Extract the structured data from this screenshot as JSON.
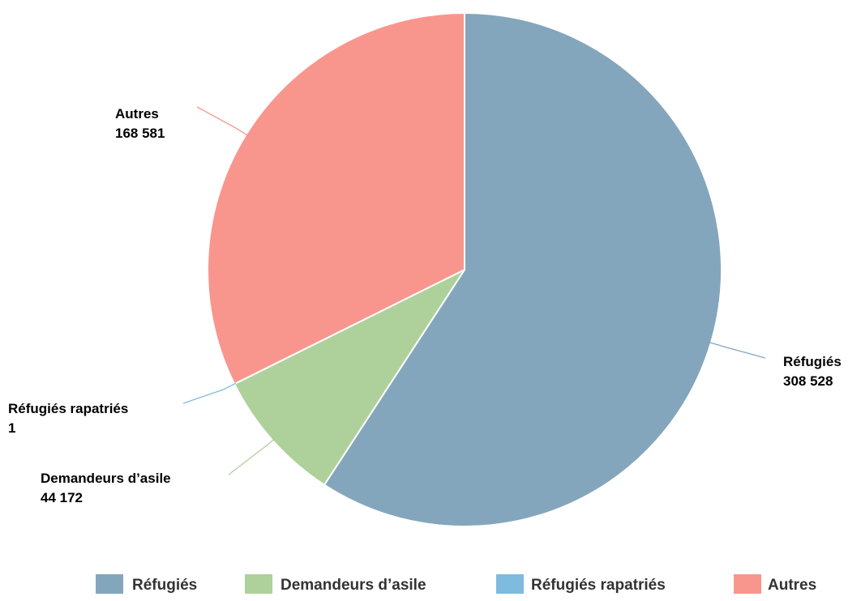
{
  "chart_data": {
    "type": "pie",
    "title": "",
    "slices": [
      {
        "name": "Réfugiés",
        "value": 308528,
        "value_label": "308 528",
        "color": "#84a6bc"
      },
      {
        "name": "Demandeurs d’asile",
        "value": 44172,
        "value_label": "44 172",
        "color": "#aed19b"
      },
      {
        "name": "Réfugiés rapatriés",
        "value": 1,
        "value_label": "1",
        "color": "#7fbadf"
      },
      {
        "name": "Autres",
        "value": 168581,
        "value_label": "168 581",
        "color": "#f8968d"
      }
    ],
    "legend_position": "bottom",
    "start_angle": "12 o'clock",
    "direction": "clockwise"
  }
}
